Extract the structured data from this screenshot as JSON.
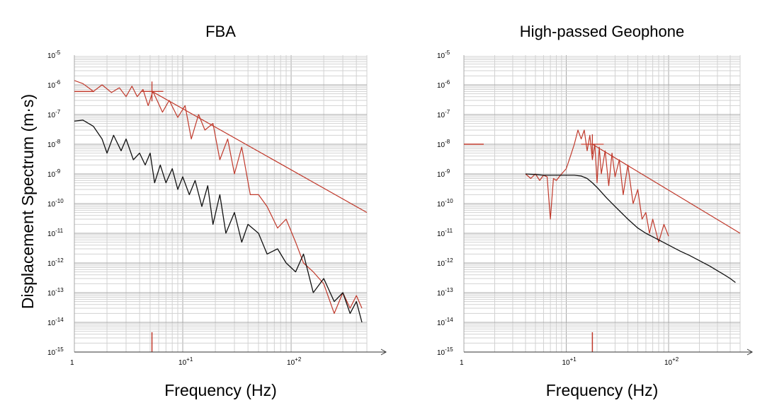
{
  "figure": {
    "ylabel": "Displacement Spectrum (m·s)"
  },
  "chart_data": [
    {
      "type": "line",
      "title": "FBA",
      "xlabel": "Frequency (Hz)",
      "ylabel": "Displacement Spectrum (m·s)",
      "x_scale": "log",
      "y_scale": "log",
      "xlim": [
        1,
        500
      ],
      "ylim": [
        1e-15,
        1e-05
      ],
      "x_ticks": [
        {
          "value": 1,
          "base": "1",
          "exp": ""
        },
        {
          "value": 10,
          "base": "10",
          "exp": "+1"
        },
        {
          "value": 100,
          "base": "10",
          "exp": "+2"
        }
      ],
      "y_ticks": [
        {
          "value": 1e-05,
          "base": "10",
          "exp": "-5"
        },
        {
          "value": 1e-06,
          "base": "10",
          "exp": "-6"
        },
        {
          "value": 1e-07,
          "base": "10",
          "exp": "-7"
        },
        {
          "value": 1e-08,
          "base": "10",
          "exp": "-8"
        },
        {
          "value": 1e-09,
          "base": "10",
          "exp": "-9"
        },
        {
          "value": 1e-10,
          "base": "10",
          "exp": "-10"
        },
        {
          "value": 1e-11,
          "base": "10",
          "exp": "-11"
        },
        {
          "value": 1e-12,
          "base": "10",
          "exp": "-12"
        },
        {
          "value": 1e-13,
          "base": "10",
          "exp": "-13"
        },
        {
          "value": 1e-14,
          "base": "10",
          "exp": "-14"
        },
        {
          "value": 1e-15,
          "base": "10",
          "exp": "-15"
        }
      ],
      "grid": true,
      "series": [
        {
          "color": "#c0392b",
          "x": [
            1,
            1.2,
            1.5,
            1.8,
            2.2,
            2.6,
            3.0,
            3.4,
            3.8,
            4.3,
            4.8,
            5.3,
            5.8,
            6.5,
            7.5,
            9,
            10.5,
            12,
            14,
            16,
            19,
            22,
            26,
            30,
            35,
            42,
            50,
            60,
            75,
            90,
            110,
            130,
            160,
            200,
            250,
            300,
            350,
            400,
            450
          ],
          "y": [
            1.4e-06,
            1.1e-06,
            6e-07,
            1e-06,
            5.5e-07,
            8e-07,
            4e-07,
            9e-07,
            4e-07,
            7e-07,
            2e-07,
            6e-07,
            3e-07,
            1.2e-07,
            3e-07,
            8e-08,
            2e-07,
            1.5e-08,
            1e-07,
            3e-08,
            5e-08,
            3e-09,
            1.5e-08,
            1e-09,
            8e-09,
            2e-10,
            2e-10,
            8e-11,
            1.5e-11,
            3e-11,
            5e-12,
            1e-12,
            5e-13,
            2e-13,
            2e-14,
            1e-13,
            3e-14,
            8e-14,
            3e-14
          ]
        },
        {
          "color": "#111111",
          "x": [
            1,
            1.2,
            1.5,
            1.8,
            2.0,
            2.3,
            2.7,
            3.0,
            3.5,
            4.0,
            4.5,
            5.0,
            5.5,
            6.2,
            7.0,
            8.0,
            9.0,
            10,
            11.5,
            13,
            15,
            17,
            19,
            22,
            25,
            30,
            35,
            40,
            50,
            60,
            75,
            90,
            110,
            130,
            160,
            200,
            250,
            300,
            350,
            400,
            450
          ],
          "y": [
            6e-08,
            6.5e-08,
            4e-08,
            1.5e-08,
            5e-09,
            2e-08,
            6e-09,
            1.5e-08,
            3e-09,
            5e-09,
            2e-09,
            5e-09,
            5e-10,
            2e-09,
            5e-10,
            1.5e-09,
            3e-10,
            8e-10,
            2e-10,
            6e-10,
            8e-11,
            4e-10,
            2e-11,
            2e-10,
            1e-11,
            5e-11,
            5e-12,
            2e-11,
            1e-11,
            2e-12,
            3e-12,
            1e-12,
            5e-13,
            2e-12,
            1e-13,
            3e-13,
            5e-14,
            1e-13,
            2e-14,
            5e-14,
            1e-14
          ]
        },
        {
          "color": "#c0392b",
          "x": [
            5.2,
            500
          ],
          "y": [
            6e-07,
            5e-11
          ]
        }
      ],
      "markers": [
        {
          "color": "#c0392b",
          "x": 5.2,
          "y": 6e-07
        }
      ],
      "left_tick": {
        "color": "#c0392b",
        "y": 6e-07
      },
      "bottom_tick": {
        "color": "#c0392b",
        "x": 5.2
      }
    },
    {
      "type": "line",
      "title": "High-passed Geophone",
      "xlabel": "Frequency (Hz)",
      "ylabel": "",
      "x_scale": "log",
      "y_scale": "log",
      "xlim": [
        1,
        500
      ],
      "ylim": [
        1e-15,
        1e-05
      ],
      "x_ticks": [
        {
          "value": 1,
          "base": "1",
          "exp": ""
        },
        {
          "value": 10,
          "base": "10",
          "exp": "+1"
        },
        {
          "value": 100,
          "base": "10",
          "exp": "+2"
        }
      ],
      "y_ticks": [
        {
          "value": 1e-05,
          "base": "10",
          "exp": "-5"
        },
        {
          "value": 1e-06,
          "base": "10",
          "exp": "-6"
        },
        {
          "value": 1e-07,
          "base": "10",
          "exp": "-7"
        },
        {
          "value": 1e-08,
          "base": "10",
          "exp": "-8"
        },
        {
          "value": 1e-09,
          "base": "10",
          "exp": "-9"
        },
        {
          "value": 1e-10,
          "base": "10",
          "exp": "-10"
        },
        {
          "value": 1e-11,
          "base": "10",
          "exp": "-11"
        },
        {
          "value": 1e-12,
          "base": "10",
          "exp": "-12"
        },
        {
          "value": 1e-13,
          "base": "10",
          "exp": "-13"
        },
        {
          "value": 1e-14,
          "base": "10",
          "exp": "-14"
        },
        {
          "value": 1e-15,
          "base": "10",
          "exp": "-15"
        }
      ],
      "grid": true,
      "series": [
        {
          "color": "#c0392b",
          "x": [
            4.0,
            4.5,
            5.0,
            5.5,
            6.0,
            6.5,
            7.0,
            7.5,
            8.0,
            9.0,
            10,
            11,
            12,
            13,
            14,
            15,
            16,
            17,
            18,
            19,
            20,
            21,
            22,
            24,
            26,
            28,
            30,
            33,
            36,
            40,
            45,
            50,
            55,
            60,
            65,
            70,
            80,
            90,
            100
          ],
          "y": [
            1e-09,
            7e-10,
            1e-09,
            6e-10,
            9e-10,
            8e-10,
            3e-11,
            7e-10,
            6e-10,
            1e-09,
            1.5e-09,
            4e-09,
            1e-08,
            3e-08,
            1.5e-08,
            3e-08,
            6e-09,
            2e-08,
            3e-09,
            1e-08,
            5e-10,
            8e-09,
            1e-09,
            6e-09,
            4e-10,
            5e-09,
            8e-10,
            3e-09,
            2e-10,
            2e-09,
            1e-10,
            3e-10,
            3e-11,
            5e-11,
            1e-11,
            3e-11,
            5e-12,
            2e-11,
            8e-12
          ]
        },
        {
          "color": "#111111",
          "x": [
            4.0,
            5,
            6,
            8,
            10,
            12,
            14,
            16,
            18,
            20,
            25,
            30,
            40,
            50,
            60,
            80,
            100,
            130,
            160,
            200,
            250,
            300,
            350,
            400,
            450
          ],
          "y": [
            1e-09,
            9.5e-10,
            9e-10,
            9e-10,
            9e-10,
            9e-10,
            8.5e-10,
            7e-10,
            5e-10,
            3.5e-10,
            1.5e-10,
            8e-11,
            3e-11,
            1.5e-11,
            1e-11,
            6e-12,
            4e-12,
            2.5e-12,
            1.8e-12,
            1.2e-12,
            8e-13,
            5.5e-13,
            4e-13,
            3e-13,
            2.2e-13
          ]
        },
        {
          "color": "#c0392b",
          "x": [
            18,
            500
          ],
          "y": [
            1e-08,
            1e-11
          ]
        }
      ],
      "markers": [
        {
          "color": "#c0392b",
          "x": 18,
          "y": 1e-08
        }
      ],
      "left_tick": {
        "color": "#c0392b",
        "y": 1e-08
      },
      "bottom_tick": {
        "color": "#c0392b",
        "x": 18
      }
    }
  ]
}
